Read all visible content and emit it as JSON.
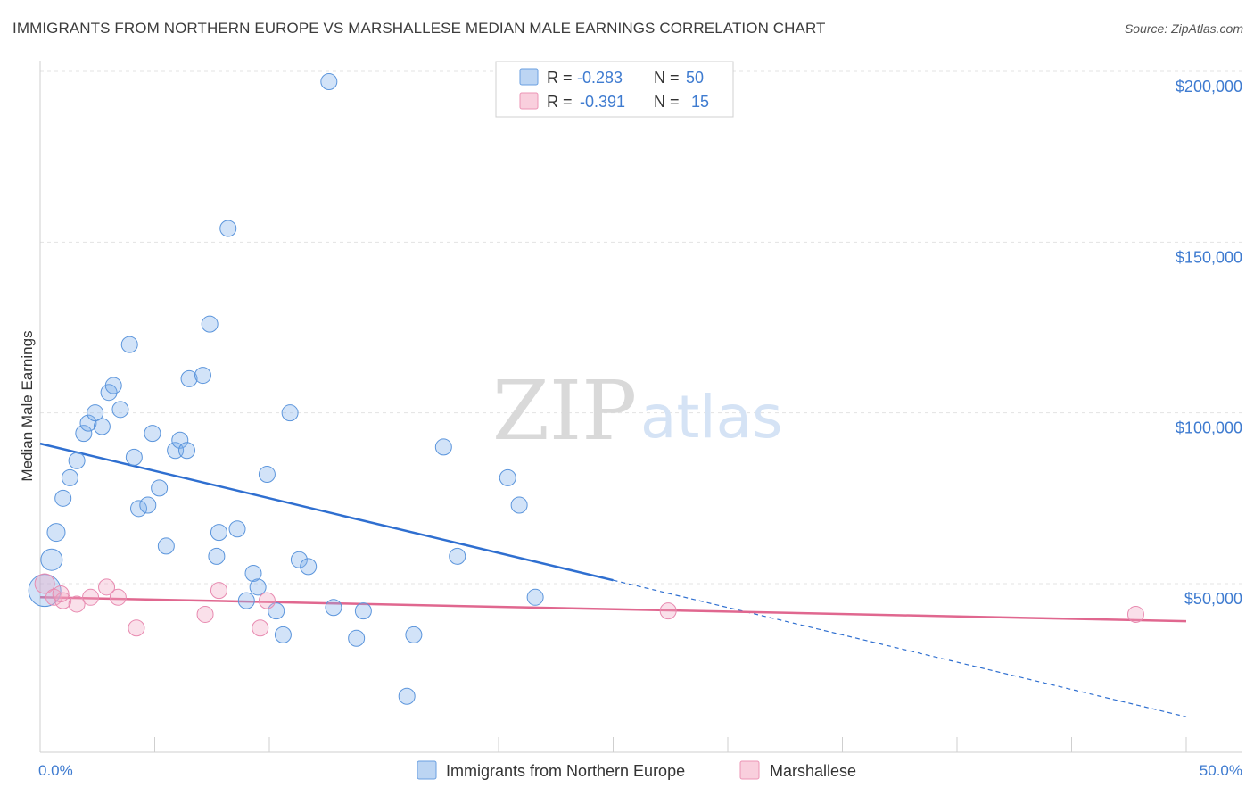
{
  "title": "IMMIGRANTS FROM NORTHERN EUROPE VS MARSHALLESE MEDIAN MALE EARNINGS CORRELATION CHART",
  "source": "Source: ZipAtlas.com",
  "watermark": {
    "zip": "ZIP",
    "atlas": "atlas"
  },
  "chart_data": {
    "type": "scatter",
    "ylabel": "Median Male Earnings",
    "xlim": [
      0,
      50
    ],
    "ylim": [
      5000,
      205000
    ],
    "x_tick_labels": [
      "0.0%",
      "50.0%"
    ],
    "y_ticks": [
      {
        "value": 200000,
        "label": "$200,000"
      },
      {
        "value": 150000,
        "label": "$150,000"
      },
      {
        "value": 100000,
        "label": "$100,000"
      },
      {
        "value": 50000,
        "label": "$50,000"
      }
    ],
    "grid": true,
    "legend_position": "top-center",
    "series": [
      {
        "name": "Immigrants from Northern Europe",
        "color": "#7fb0ea",
        "stats": {
          "r_label": "R =",
          "r_value": "-0.283",
          "n_label": "N =",
          "n_value": "50"
        },
        "trend": {
          "x0": 0,
          "y0": 91000,
          "x1": 25,
          "y1": 51000,
          "dash_x_end": 50,
          "dash_y_end": 11000
        },
        "points": [
          [
            0.2,
            48000,
            18
          ],
          [
            0.5,
            57000,
            12
          ],
          [
            0.7,
            65000,
            10
          ],
          [
            1.0,
            75000,
            9
          ],
          [
            1.3,
            81000,
            9
          ],
          [
            1.6,
            86000,
            9
          ],
          [
            1.9,
            94000,
            9
          ],
          [
            2.1,
            97000,
            9
          ],
          [
            2.4,
            100000,
            9
          ],
          [
            2.7,
            96000,
            9
          ],
          [
            3.0,
            106000,
            9
          ],
          [
            3.2,
            108000,
            9
          ],
          [
            3.5,
            101000,
            9
          ],
          [
            3.9,
            120000,
            9
          ],
          [
            4.1,
            87000,
            9
          ],
          [
            4.3,
            72000,
            9
          ],
          [
            4.7,
            73000,
            9
          ],
          [
            4.9,
            94000,
            9
          ],
          [
            5.2,
            78000,
            9
          ],
          [
            5.5,
            61000,
            9
          ],
          [
            5.9,
            89000,
            9
          ],
          [
            6.1,
            92000,
            9
          ],
          [
            6.4,
            89000,
            9
          ],
          [
            6.5,
            110000,
            9
          ],
          [
            7.1,
            111000,
            9
          ],
          [
            7.4,
            126000,
            9
          ],
          [
            7.7,
            58000,
            9
          ],
          [
            7.8,
            65000,
            9
          ],
          [
            8.2,
            154000,
            9
          ],
          [
            8.6,
            66000,
            9
          ],
          [
            9.0,
            45000,
            9
          ],
          [
            9.3,
            53000,
            9
          ],
          [
            9.5,
            49000,
            9
          ],
          [
            9.9,
            82000,
            9
          ],
          [
            10.3,
            42000,
            9
          ],
          [
            10.6,
            35000,
            9
          ],
          [
            10.9,
            100000,
            9
          ],
          [
            11.3,
            57000,
            9
          ],
          [
            11.7,
            55000,
            9
          ],
          [
            12.6,
            197000,
            9
          ],
          [
            12.8,
            43000,
            9
          ],
          [
            13.8,
            34000,
            9
          ],
          [
            14.1,
            42000,
            9
          ],
          [
            16.0,
            17000,
            9
          ],
          [
            16.3,
            35000,
            9
          ],
          [
            17.6,
            90000,
            9
          ],
          [
            18.2,
            58000,
            9
          ],
          [
            20.4,
            81000,
            9
          ],
          [
            20.9,
            73000,
            9
          ],
          [
            21.6,
            46000,
            9
          ]
        ]
      },
      {
        "name": "Marshallese",
        "color": "#f2a6c2",
        "stats": {
          "r_label": "R =",
          "r_value": "-0.391",
          "n_label": "N =",
          "n_value": "15"
        },
        "trend": {
          "x0": 0,
          "y0": 46000,
          "x1": 50,
          "y1": 39000
        },
        "points": [
          [
            0.2,
            50000,
            11
          ],
          [
            0.6,
            46000,
            9
          ],
          [
            1.0,
            45000,
            9
          ],
          [
            1.6,
            44000,
            9
          ],
          [
            2.2,
            46000,
            9
          ],
          [
            2.9,
            49000,
            9
          ],
          [
            3.4,
            46000,
            9
          ],
          [
            4.2,
            37000,
            9
          ],
          [
            7.2,
            41000,
            9
          ],
          [
            7.8,
            48000,
            9
          ],
          [
            9.6,
            37000,
            9
          ],
          [
            9.9,
            45000,
            9
          ],
          [
            27.4,
            42000,
            9
          ],
          [
            47.8,
            41000,
            9
          ],
          [
            0.9,
            47000,
            9
          ]
        ]
      }
    ]
  }
}
